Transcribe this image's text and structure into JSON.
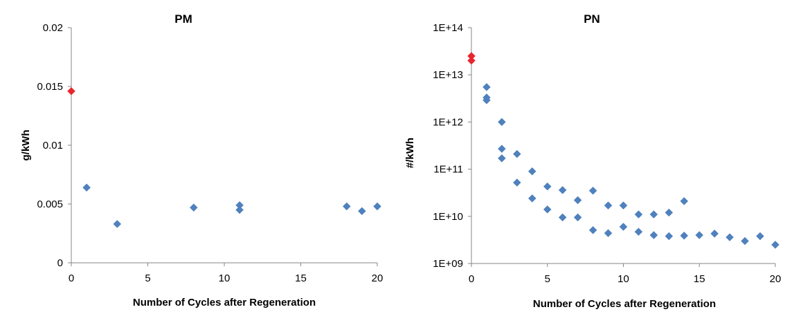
{
  "chart_data": [
    {
      "type": "scatter",
      "title": "PM",
      "xlabel": "Number of Cycles after Regeneration",
      "ylabel": "g/kWh",
      "xlim": [
        0,
        20
      ],
      "ylim": [
        0,
        0.02
      ],
      "x_ticks": [
        "0",
        "5",
        "10",
        "15",
        "20"
      ],
      "y_ticks": [
        "0",
        "0.005",
        "0.01",
        "0.015",
        "0.02"
      ],
      "grid": false,
      "colors": {
        "baseline": "#e8262d",
        "cycles": "#4f81bd"
      },
      "series": [
        {
          "points": [
            [
              0,
              0.0146
            ]
          ]
        },
        {
          "points": [
            [
              1,
              0.0064
            ],
            [
              3,
              0.0033
            ],
            [
              8,
              0.0047
            ],
            [
              11,
              0.0049
            ],
            [
              11,
              0.0045
            ],
            [
              18,
              0.0048
            ],
            [
              19,
              0.0044
            ],
            [
              20,
              0.0048
            ]
          ]
        }
      ]
    },
    {
      "type": "scatter",
      "title": "PN",
      "xlabel": "Number of Cycles after Regeneration",
      "ylabel": "#/kWh",
      "xlim": [
        0,
        20
      ],
      "ylim": [
        1000000000.0,
        100000000000000.0
      ],
      "yscale": "log",
      "x_ticks": [
        "0",
        "5",
        "10",
        "15",
        "20"
      ],
      "y_ticks": [
        "1E+09",
        "1E+10",
        "1E+11",
        "1E+12",
        "1E+13",
        "1E+14"
      ],
      "grid": false,
      "colors": {
        "baseline": "#e8262d",
        "cycles": "#4f81bd"
      },
      "series": [
        {
          "points": [
            [
              0,
              25000000000000.0
            ],
            [
              0,
              20000000000000.0
            ]
          ]
        },
        {
          "points": [
            [
              1,
              5500000000000.0
            ],
            [
              1,
              3300000000000.0
            ],
            [
              1,
              2900000000000.0
            ],
            [
              2,
              1000000000000.0
            ],
            [
              2,
              270000000000.0
            ],
            [
              2,
              170000000000.0
            ],
            [
              3,
              210000000000.0
            ],
            [
              3,
              52000000000.0
            ],
            [
              4,
              90000000000.0
            ],
            [
              4,
              24000000000.0
            ],
            [
              5,
              43000000000.0
            ],
            [
              5,
              14000000000.0
            ],
            [
              6,
              36000000000.0
            ],
            [
              6,
              9500000000.0
            ],
            [
              7,
              22000000000.0
            ],
            [
              7,
              9500000000.0
            ],
            [
              8,
              35000000000.0
            ],
            [
              8,
              5100000000.0
            ],
            [
              9,
              17000000000.0
            ],
            [
              9,
              4400000000.0
            ],
            [
              10,
              17000000000.0
            ],
            [
              10,
              6000000000.0
            ],
            [
              11,
              11000000000.0
            ],
            [
              11,
              4700000000.0
            ],
            [
              12,
              11000000000.0
            ],
            [
              12,
              4000000000.0
            ],
            [
              13,
              12000000000.0
            ],
            [
              13,
              3800000000.0
            ],
            [
              14,
              21000000000.0
            ],
            [
              14,
              3900000000.0
            ],
            [
              15,
              4000000000.0
            ],
            [
              16,
              4300000000.0
            ],
            [
              17,
              3600000000.0
            ],
            [
              18,
              3000000000.0
            ],
            [
              19,
              3800000000.0
            ],
            [
              20,
              2500000000.0
            ]
          ]
        }
      ]
    }
  ]
}
